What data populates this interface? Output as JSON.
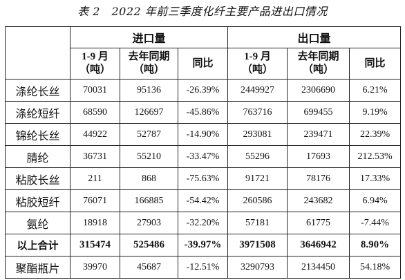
{
  "caption": "表 2　2022 年前三季度化纤主要产品进出口情况",
  "groups": {
    "import": "进口量",
    "export": "出口量"
  },
  "columns": {
    "jan_sep_line1": "1-9 月",
    "jan_sep_line2": "（吨）",
    "last_year_line1": "去年同期",
    "last_year_line2": "（吨）",
    "yoy": "同比"
  },
  "rows": [
    {
      "name": "涤纶长丝",
      "imp_ytd": "70031",
      "imp_ly": "95136",
      "imp_yoy": "-26.39%",
      "exp_ytd": "2449927",
      "exp_ly": "2306690",
      "exp_yoy": "6.21%"
    },
    {
      "name": "涤纶短纤",
      "imp_ytd": "68590",
      "imp_ly": "126697",
      "imp_yoy": "-45.86%",
      "exp_ytd": "763716",
      "exp_ly": "699455",
      "exp_yoy": "9.19%"
    },
    {
      "name": "锦纶长丝",
      "imp_ytd": "44922",
      "imp_ly": "52787",
      "imp_yoy": "-14.90%",
      "exp_ytd": "293081",
      "exp_ly": "239471",
      "exp_yoy": "22.39%"
    },
    {
      "name": "腈纶",
      "imp_ytd": "36731",
      "imp_ly": "55210",
      "imp_yoy": "-33.47%",
      "exp_ytd": "55296",
      "exp_ly": "17693",
      "exp_yoy": "212.53%"
    },
    {
      "name": "粘胶长丝",
      "imp_ytd": "211",
      "imp_ly": "868",
      "imp_yoy": "-75.63%",
      "exp_ytd": "91721",
      "exp_ly": "78176",
      "exp_yoy": "17.33%"
    },
    {
      "name": "粘胶短纤",
      "imp_ytd": "76071",
      "imp_ly": "166885",
      "imp_yoy": "-54.42%",
      "exp_ytd": "260586",
      "exp_ly": "243682",
      "exp_yoy": "6.94%"
    },
    {
      "name": "氨纶",
      "imp_ytd": "18918",
      "imp_ly": "27903",
      "imp_yoy": "-32.20%",
      "exp_ytd": "57181",
      "exp_ly": "61775",
      "exp_yoy": "-7.44%"
    },
    {
      "name": "以上合计",
      "imp_ytd": "315474",
      "imp_ly": "525486",
      "imp_yoy": "-39.97%",
      "exp_ytd": "3971508",
      "exp_ly": "3646942",
      "exp_yoy": "8.90%"
    },
    {
      "name": "聚酯瓶片",
      "imp_ytd": "39970",
      "imp_ly": "45687",
      "imp_yoy": "-12.51%",
      "exp_ytd": "3290793",
      "exp_ly": "2134450",
      "exp_yoy": "54.18%"
    }
  ]
}
